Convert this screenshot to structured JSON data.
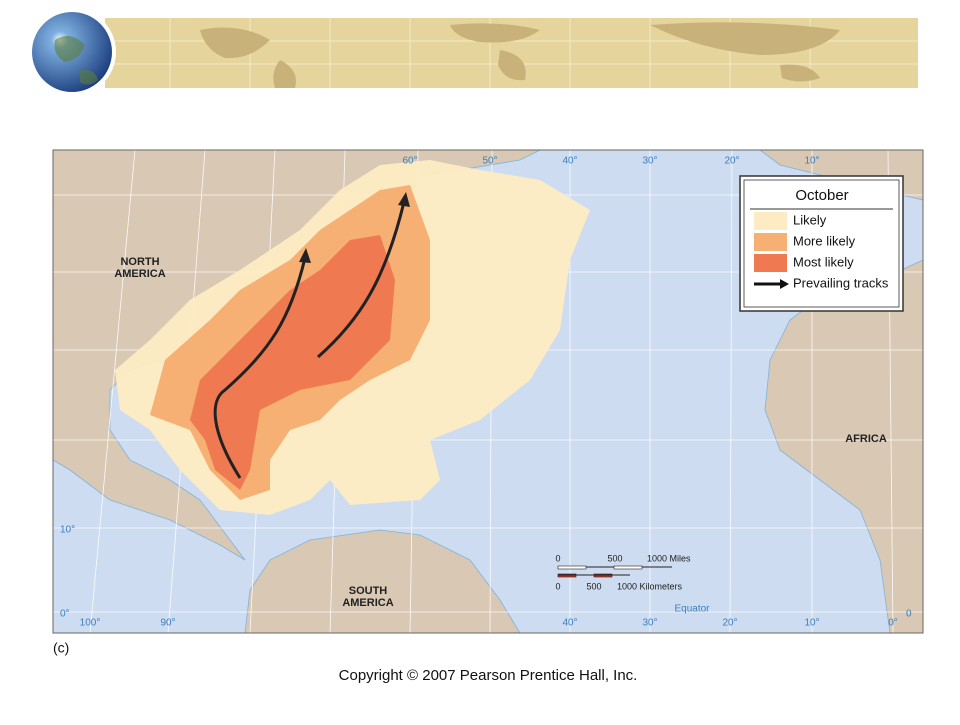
{
  "map": {
    "legend": {
      "title": "October",
      "items": [
        "Likely",
        "More likely",
        "Most likely",
        "Prevailing tracks"
      ]
    },
    "regions": {
      "north_america": [
        "NORTH",
        "AMERICA"
      ],
      "south_america": [
        "SOUTH",
        "AMERICA"
      ],
      "africa": "AFRICA"
    },
    "longitude_top": [
      "60°",
      "50°",
      "40°",
      "30°",
      "20°",
      "10°"
    ],
    "longitude_bottom": [
      "100°",
      "90°",
      "40°",
      "30°",
      "20°",
      "10°",
      "0°"
    ],
    "latitude_left": [
      "10°",
      "0°"
    ],
    "latitude_right": "0",
    "equator": "Equator",
    "scale": {
      "miles": [
        "0",
        "500",
        "1000 Miles"
      ],
      "kilometers": [
        "0",
        "500",
        "1000 Kilometers"
      ]
    }
  },
  "caption": "(c)",
  "copyright": "Copyright © 2007 Pearson Prentice Hall, Inc."
}
